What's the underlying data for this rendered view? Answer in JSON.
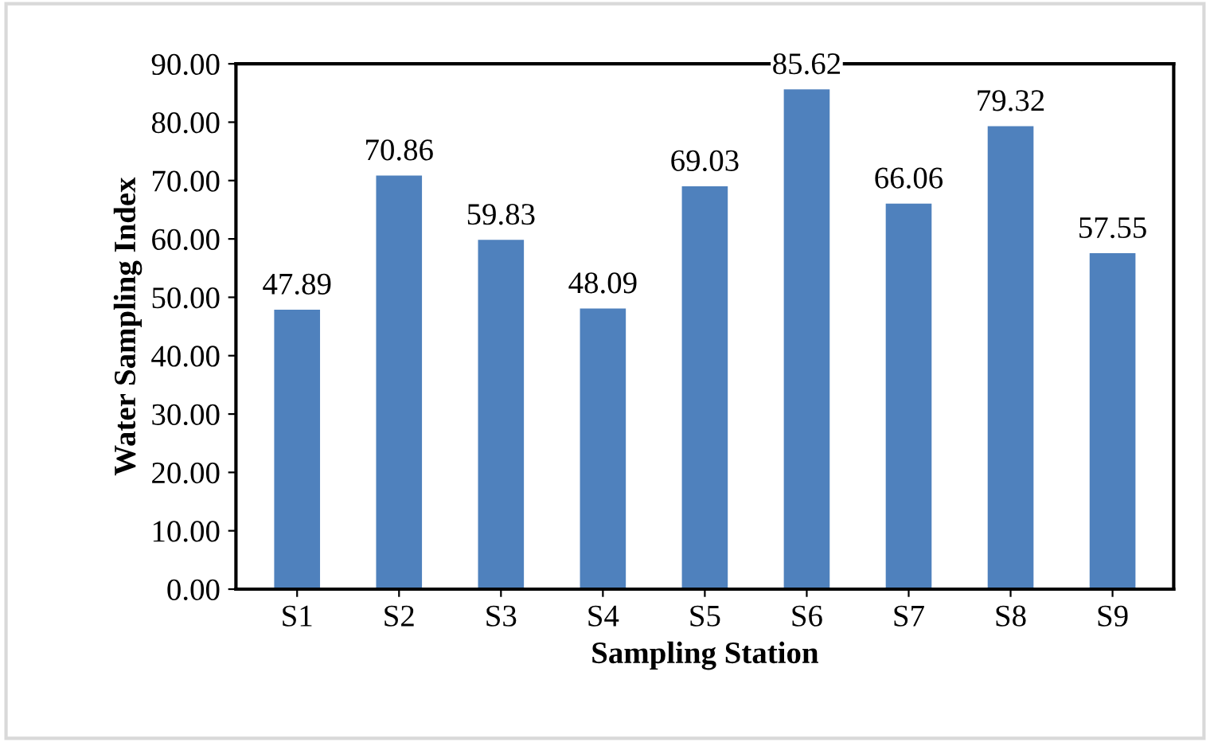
{
  "chart_data": {
    "type": "bar",
    "xlabel": "Sampling Station",
    "ylabel": "Water Sampling Index",
    "categories": [
      "S1",
      "S2",
      "S3",
      "S4",
      "S5",
      "S6",
      "S7",
      "S8",
      "S9"
    ],
    "values": [
      47.89,
      70.86,
      59.83,
      48.09,
      69.03,
      85.62,
      66.06,
      79.32,
      57.55
    ],
    "color": "#4f81bd",
    "ylim": [
      0,
      90
    ],
    "yticks": [
      {
        "value": 0,
        "label": "0.00"
      },
      {
        "value": 10,
        "label": "10.00"
      },
      {
        "value": 20,
        "label": "20.00"
      },
      {
        "value": 30,
        "label": "30.00"
      },
      {
        "value": 40,
        "label": "40.00"
      },
      {
        "value": 50,
        "label": "50.00"
      },
      {
        "value": 60,
        "label": "60.00"
      },
      {
        "value": 70,
        "label": "70.00"
      },
      {
        "value": 80,
        "label": "80.00"
      },
      {
        "value": 90,
        "label": "90.00"
      }
    ],
    "data_labels": true,
    "grid": false
  }
}
